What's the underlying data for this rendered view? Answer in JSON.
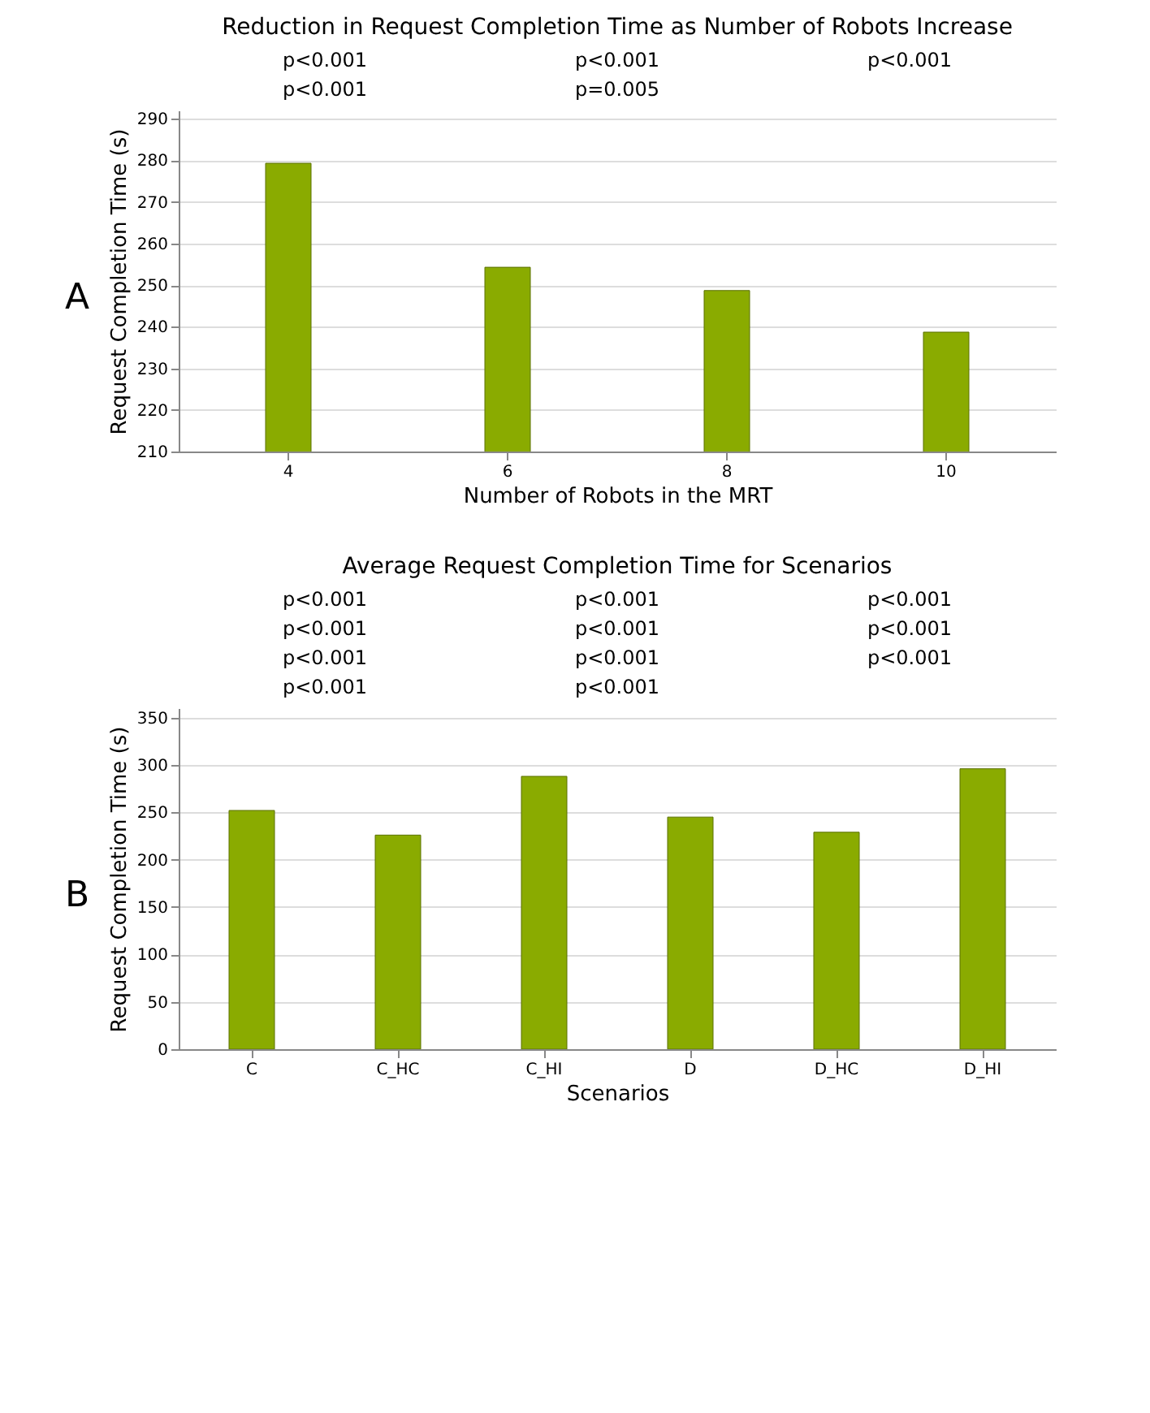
{
  "chart_data": [
    {
      "type": "bar",
      "title": "Reduction in Request Completion Time as Number of Robots Increase",
      "xlabel": "Number of Robots in the MRT",
      "ylabel": "Request Completion Time (s)",
      "categories": [
        "4",
        "6",
        "8",
        "10"
      ],
      "values": [
        279.3,
        254.3,
        248.7,
        238.7
      ],
      "color": "#8aab00",
      "ylim": [
        210,
        292
      ],
      "yticks": [
        210,
        220,
        230,
        240,
        250,
        260,
        270,
        280,
        290
      ],
      "grid": "y",
      "annotations": [
        "A",
        "p<0.001",
        "p<0.001",
        "p<0.001",
        "p<0.001",
        "p=0.005"
      ]
    },
    {
      "type": "bar",
      "title": "Average Request Completion Time for Scenarios",
      "xlabel": "Scenarios",
      "ylabel": "Request Completion Time (s)",
      "categories": [
        "C",
        "C_HC",
        "C_HI",
        "D",
        "D_HC",
        "D_HI"
      ],
      "values": [
        252,
        226,
        288,
        245,
        229,
        296
      ],
      "color": "#8aab00",
      "ylim": [
        0,
        360
      ],
      "yticks": [
        0,
        50,
        100,
        150,
        200,
        250,
        300,
        350
      ],
      "grid": "y",
      "annotations": [
        "B",
        "p<0.001",
        "p<0.001",
        "p<0.001",
        "p<0.001",
        "p<0.001",
        "p<0.001",
        "p<0.001",
        "p<0.001",
        "p<0.001",
        "p<0.001",
        "p<0.001"
      ]
    }
  ]
}
